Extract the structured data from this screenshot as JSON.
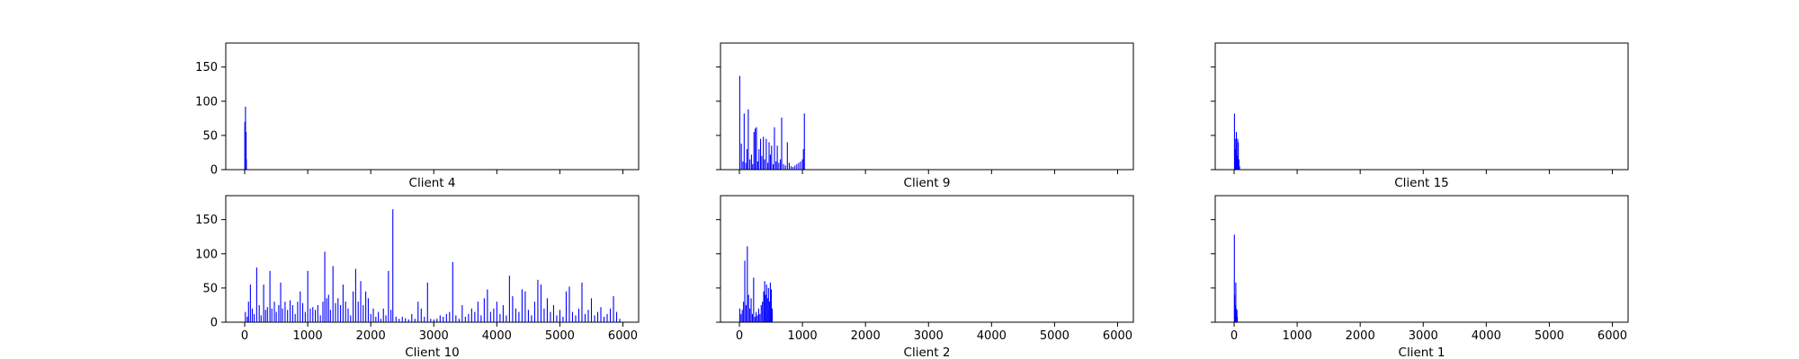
{
  "chart_data": [
    {
      "type": "bar",
      "title": "Client 4",
      "series_color": "#0000ff",
      "xlim": [
        -300,
        6250
      ],
      "ylim": [
        0,
        185
      ],
      "xticks": [
        0,
        1000,
        2000,
        3000,
        4000,
        5000,
        6000
      ],
      "yticks": [
        0,
        50,
        100,
        150
      ],
      "show_xtick_labels": false,
      "show_ytick_labels": true,
      "bars": [
        {
          "x": 2,
          "y": 70
        },
        {
          "x": 5,
          "y": 65
        },
        {
          "x": 8,
          "y": 30
        },
        {
          "x": 12,
          "y": 92
        },
        {
          "x": 15,
          "y": 40
        },
        {
          "x": 18,
          "y": 25
        },
        {
          "x": 22,
          "y": 55
        },
        {
          "x": 26,
          "y": 15
        }
      ]
    },
    {
      "type": "bar",
      "title": "Client 9",
      "series_color": "#0000ff",
      "xlim": [
        -300,
        6250
      ],
      "ylim": [
        0,
        185
      ],
      "xticks": [
        0,
        1000,
        2000,
        3000,
        4000,
        5000,
        6000
      ],
      "yticks": [
        0,
        50,
        100,
        150
      ],
      "show_xtick_labels": false,
      "show_ytick_labels": false,
      "bars": [
        {
          "x": 5,
          "y": 137
        },
        {
          "x": 30,
          "y": 38
        },
        {
          "x": 55,
          "y": 12
        },
        {
          "x": 75,
          "y": 82
        },
        {
          "x": 100,
          "y": 10
        },
        {
          "x": 120,
          "y": 30
        },
        {
          "x": 140,
          "y": 88
        },
        {
          "x": 165,
          "y": 15
        },
        {
          "x": 190,
          "y": 22
        },
        {
          "x": 210,
          "y": 8
        },
        {
          "x": 230,
          "y": 55
        },
        {
          "x": 250,
          "y": 60
        },
        {
          "x": 270,
          "y": 62
        },
        {
          "x": 290,
          "y": 12
        },
        {
          "x": 310,
          "y": 30
        },
        {
          "x": 335,
          "y": 45
        },
        {
          "x": 355,
          "y": 20
        },
        {
          "x": 380,
          "y": 48
        },
        {
          "x": 400,
          "y": 15
        },
        {
          "x": 425,
          "y": 45
        },
        {
          "x": 450,
          "y": 10
        },
        {
          "x": 470,
          "y": 40
        },
        {
          "x": 490,
          "y": 22
        },
        {
          "x": 510,
          "y": 35
        },
        {
          "x": 535,
          "y": 8
        },
        {
          "x": 555,
          "y": 62
        },
        {
          "x": 580,
          "y": 12
        },
        {
          "x": 600,
          "y": 35
        },
        {
          "x": 625,
          "y": 10
        },
        {
          "x": 650,
          "y": 15
        },
        {
          "x": 670,
          "y": 76
        },
        {
          "x": 700,
          "y": 8
        },
        {
          "x": 730,
          "y": 6
        },
        {
          "x": 760,
          "y": 40
        },
        {
          "x": 790,
          "y": 10
        },
        {
          "x": 820,
          "y": 5
        },
        {
          "x": 850,
          "y": 4
        },
        {
          "x": 880,
          "y": 6
        },
        {
          "x": 910,
          "y": 8
        },
        {
          "x": 940,
          "y": 10
        },
        {
          "x": 970,
          "y": 12
        },
        {
          "x": 1000,
          "y": 15
        },
        {
          "x": 1015,
          "y": 30
        },
        {
          "x": 1030,
          "y": 82
        }
      ]
    },
    {
      "type": "bar",
      "title": "Client 15",
      "series_color": "#0000ff",
      "xlim": [
        -300,
        6250
      ],
      "ylim": [
        0,
        185
      ],
      "xticks": [
        0,
        1000,
        2000,
        3000,
        4000,
        5000,
        6000
      ],
      "yticks": [
        0,
        50,
        100,
        150
      ],
      "show_xtick_labels": false,
      "show_ytick_labels": false,
      "bars": [
        {
          "x": 5,
          "y": 82
        },
        {
          "x": 15,
          "y": 30
        },
        {
          "x": 25,
          "y": 45
        },
        {
          "x": 35,
          "y": 55
        },
        {
          "x": 45,
          "y": 20
        },
        {
          "x": 55,
          "y": 45
        },
        {
          "x": 65,
          "y": 40
        },
        {
          "x": 75,
          "y": 15
        },
        {
          "x": 85,
          "y": 5
        }
      ]
    },
    {
      "type": "bar",
      "title": "Client 10",
      "series_color": "#0000ff",
      "xlim": [
        -300,
        6250
      ],
      "ylim": [
        0,
        185
      ],
      "xticks": [
        0,
        1000,
        2000,
        3000,
        4000,
        5000,
        6000
      ],
      "yticks": [
        0,
        50,
        100,
        150
      ],
      "show_xtick_labels": true,
      "show_ytick_labels": true,
      "bars": [
        {
          "x": 10,
          "y": 15
        },
        {
          "x": 40,
          "y": 8
        },
        {
          "x": 60,
          "y": 30
        },
        {
          "x": 90,
          "y": 55
        },
        {
          "x": 120,
          "y": 20
        },
        {
          "x": 150,
          "y": 12
        },
        {
          "x": 190,
          "y": 80
        },
        {
          "x": 230,
          "y": 25
        },
        {
          "x": 260,
          "y": 10
        },
        {
          "x": 300,
          "y": 55
        },
        {
          "x": 330,
          "y": 18
        },
        {
          "x": 360,
          "y": 22
        },
        {
          "x": 400,
          "y": 75
        },
        {
          "x": 430,
          "y": 20
        },
        {
          "x": 470,
          "y": 30
        },
        {
          "x": 500,
          "y": 15
        },
        {
          "x": 540,
          "y": 25
        },
        {
          "x": 570,
          "y": 58
        },
        {
          "x": 600,
          "y": 20
        },
        {
          "x": 640,
          "y": 30
        },
        {
          "x": 680,
          "y": 18
        },
        {
          "x": 720,
          "y": 32
        },
        {
          "x": 760,
          "y": 25
        },
        {
          "x": 800,
          "y": 12
        },
        {
          "x": 840,
          "y": 30
        },
        {
          "x": 880,
          "y": 45
        },
        {
          "x": 920,
          "y": 28
        },
        {
          "x": 960,
          "y": 15
        },
        {
          "x": 1000,
          "y": 75
        },
        {
          "x": 1040,
          "y": 20
        },
        {
          "x": 1080,
          "y": 22
        },
        {
          "x": 1120,
          "y": 18
        },
        {
          "x": 1160,
          "y": 25
        },
        {
          "x": 1200,
          "y": 10
        },
        {
          "x": 1240,
          "y": 30
        },
        {
          "x": 1270,
          "y": 103
        },
        {
          "x": 1300,
          "y": 35
        },
        {
          "x": 1330,
          "y": 40
        },
        {
          "x": 1360,
          "y": 18
        },
        {
          "x": 1400,
          "y": 82
        },
        {
          "x": 1440,
          "y": 28
        },
        {
          "x": 1480,
          "y": 35
        },
        {
          "x": 1520,
          "y": 25
        },
        {
          "x": 1560,
          "y": 55
        },
        {
          "x": 1600,
          "y": 30
        },
        {
          "x": 1640,
          "y": 20
        },
        {
          "x": 1680,
          "y": 10
        },
        {
          "x": 1720,
          "y": 45
        },
        {
          "x": 1760,
          "y": 78
        },
        {
          "x": 1800,
          "y": 30
        },
        {
          "x": 1840,
          "y": 60
        },
        {
          "x": 1880,
          "y": 25
        },
        {
          "x": 1920,
          "y": 45
        },
        {
          "x": 1960,
          "y": 35
        },
        {
          "x": 2000,
          "y": 12
        },
        {
          "x": 2040,
          "y": 20
        },
        {
          "x": 2080,
          "y": 8
        },
        {
          "x": 2120,
          "y": 15
        },
        {
          "x": 2160,
          "y": 5
        },
        {
          "x": 2200,
          "y": 20
        },
        {
          "x": 2240,
          "y": 10
        },
        {
          "x": 2280,
          "y": 75
        },
        {
          "x": 2320,
          "y": 18
        },
        {
          "x": 2350,
          "y": 165
        },
        {
          "x": 2400,
          "y": 8
        },
        {
          "x": 2450,
          "y": 5
        },
        {
          "x": 2500,
          "y": 8
        },
        {
          "x": 2550,
          "y": 6
        },
        {
          "x": 2600,
          "y": 4
        },
        {
          "x": 2650,
          "y": 12
        },
        {
          "x": 2700,
          "y": 5
        },
        {
          "x": 2750,
          "y": 30
        },
        {
          "x": 2800,
          "y": 20
        },
        {
          "x": 2850,
          "y": 8
        },
        {
          "x": 2900,
          "y": 58
        },
        {
          "x": 2950,
          "y": 5
        },
        {
          "x": 3000,
          "y": 4
        },
        {
          "x": 3050,
          "y": 5
        },
        {
          "x": 3100,
          "y": 10
        },
        {
          "x": 3150,
          "y": 8
        },
        {
          "x": 3200,
          "y": 12
        },
        {
          "x": 3250,
          "y": 15
        },
        {
          "x": 3300,
          "y": 88
        },
        {
          "x": 3350,
          "y": 10
        },
        {
          "x": 3400,
          "y": 5
        },
        {
          "x": 3450,
          "y": 25
        },
        {
          "x": 3500,
          "y": 8
        },
        {
          "x": 3550,
          "y": 12
        },
        {
          "x": 3600,
          "y": 20
        },
        {
          "x": 3650,
          "y": 15
        },
        {
          "x": 3700,
          "y": 30
        },
        {
          "x": 3750,
          "y": 10
        },
        {
          "x": 3800,
          "y": 35
        },
        {
          "x": 3850,
          "y": 48
        },
        {
          "x": 3900,
          "y": 15
        },
        {
          "x": 3950,
          "y": 20
        },
        {
          "x": 4000,
          "y": 30
        },
        {
          "x": 4050,
          "y": 12
        },
        {
          "x": 4100,
          "y": 25
        },
        {
          "x": 4150,
          "y": 10
        },
        {
          "x": 4200,
          "y": 68
        },
        {
          "x": 4250,
          "y": 38
        },
        {
          "x": 4300,
          "y": 20
        },
        {
          "x": 4350,
          "y": 15
        },
        {
          "x": 4400,
          "y": 48
        },
        {
          "x": 4450,
          "y": 45
        },
        {
          "x": 4500,
          "y": 18
        },
        {
          "x": 4550,
          "y": 10
        },
        {
          "x": 4600,
          "y": 30
        },
        {
          "x": 4650,
          "y": 62
        },
        {
          "x": 4700,
          "y": 55
        },
        {
          "x": 4750,
          "y": 20
        },
        {
          "x": 4800,
          "y": 35
        },
        {
          "x": 4850,
          "y": 15
        },
        {
          "x": 4900,
          "y": 25
        },
        {
          "x": 4950,
          "y": 10
        },
        {
          "x": 5000,
          "y": 18
        },
        {
          "x": 5050,
          "y": 8
        },
        {
          "x": 5100,
          "y": 45
        },
        {
          "x": 5150,
          "y": 52
        },
        {
          "x": 5200,
          "y": 15
        },
        {
          "x": 5250,
          "y": 10
        },
        {
          "x": 5300,
          "y": 20
        },
        {
          "x": 5350,
          "y": 58
        },
        {
          "x": 5400,
          "y": 12
        },
        {
          "x": 5450,
          "y": 18
        },
        {
          "x": 5500,
          "y": 35
        },
        {
          "x": 5550,
          "y": 10
        },
        {
          "x": 5600,
          "y": 15
        },
        {
          "x": 5650,
          "y": 22
        },
        {
          "x": 5700,
          "y": 8
        },
        {
          "x": 5750,
          "y": 12
        },
        {
          "x": 5800,
          "y": 20
        },
        {
          "x": 5850,
          "y": 38
        },
        {
          "x": 5900,
          "y": 15
        },
        {
          "x": 5950,
          "y": 5
        }
      ]
    },
    {
      "type": "bar",
      "title": "Client 2",
      "series_color": "#0000ff",
      "xlim": [
        -300,
        6250
      ],
      "ylim": [
        0,
        185
      ],
      "xticks": [
        0,
        1000,
        2000,
        3000,
        4000,
        5000,
        6000
      ],
      "yticks": [
        0,
        50,
        100,
        150
      ],
      "show_xtick_labels": true,
      "show_ytick_labels": false,
      "bars": [
        {
          "x": 5,
          "y": 20
        },
        {
          "x": 25,
          "y": 12
        },
        {
          "x": 45,
          "y": 18
        },
        {
          "x": 65,
          "y": 30
        },
        {
          "x": 85,
          "y": 90
        },
        {
          "x": 105,
          "y": 25
        },
        {
          "x": 125,
          "y": 111
        },
        {
          "x": 145,
          "y": 40
        },
        {
          "x": 165,
          "y": 20
        },
        {
          "x": 185,
          "y": 35
        },
        {
          "x": 205,
          "y": 12
        },
        {
          "x": 225,
          "y": 65
        },
        {
          "x": 245,
          "y": 8
        },
        {
          "x": 265,
          "y": 15
        },
        {
          "x": 285,
          "y": 10
        },
        {
          "x": 305,
          "y": 20
        },
        {
          "x": 325,
          "y": 12
        },
        {
          "x": 345,
          "y": 25
        },
        {
          "x": 365,
          "y": 30
        },
        {
          "x": 385,
          "y": 45
        },
        {
          "x": 400,
          "y": 60
        },
        {
          "x": 415,
          "y": 40
        },
        {
          "x": 430,
          "y": 55
        },
        {
          "x": 445,
          "y": 35
        },
        {
          "x": 460,
          "y": 50
        },
        {
          "x": 475,
          "y": 30
        },
        {
          "x": 490,
          "y": 58
        },
        {
          "x": 505,
          "y": 48
        },
        {
          "x": 520,
          "y": 20
        }
      ]
    },
    {
      "type": "bar",
      "title": "Client 1",
      "series_color": "#0000ff",
      "xlim": [
        -300,
        6250
      ],
      "ylim": [
        0,
        185
      ],
      "xticks": [
        0,
        1000,
        2000,
        3000,
        4000,
        5000,
        6000
      ],
      "yticks": [
        0,
        50,
        100,
        150
      ],
      "show_xtick_labels": true,
      "show_ytick_labels": false,
      "bars": [
        {
          "x": 3,
          "y": 128
        },
        {
          "x": 8,
          "y": 40
        },
        {
          "x": 14,
          "y": 25
        },
        {
          "x": 20,
          "y": 15
        },
        {
          "x": 26,
          "y": 58
        },
        {
          "x": 32,
          "y": 20
        },
        {
          "x": 38,
          "y": 10
        },
        {
          "x": 44,
          "y": 18
        },
        {
          "x": 50,
          "y": 8
        }
      ]
    }
  ]
}
